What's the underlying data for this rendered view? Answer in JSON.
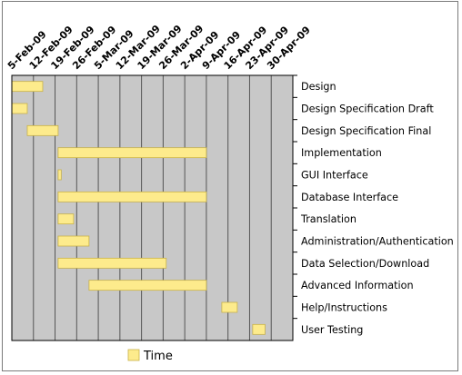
{
  "chart_data": {
    "type": "bar",
    "orientation": "horizontal",
    "subtype": "gantt",
    "title": "",
    "x_tick_labels": [
      "5-Feb-09",
      "12-Feb-09",
      "19-Feb-09",
      "26-Feb-09",
      "5-Mar-09",
      "12-Mar-09",
      "19-Mar-09",
      "26-Mar-09",
      "2-Apr-09",
      "9-Apr-09",
      "16-Apr-09",
      "23-Apr-09",
      "30-Apr-09"
    ],
    "x_range": [
      "2009-02-05",
      "2009-05-07"
    ],
    "y_axis_position": "right",
    "grid": true,
    "legend": {
      "position": "bottom-left",
      "entries": [
        "Time"
      ]
    },
    "colors": {
      "bar": "#fdeb8c",
      "bar_edge": "#c8b24a",
      "plot_bg": "#c8c8c8",
      "grid": "#555555",
      "axis": "#000000"
    },
    "series": [
      {
        "name": "Time",
        "tasks": [
          {
            "task": "Design",
            "start": "2009-02-05",
            "end": "2009-02-15"
          },
          {
            "task": "Design Specification Draft",
            "start": "2009-02-05",
            "end": "2009-02-10"
          },
          {
            "task": "Design Specification Final",
            "start": "2009-02-10",
            "end": "2009-02-20"
          },
          {
            "task": "Implementation",
            "start": "2009-02-20",
            "end": "2009-04-09"
          },
          {
            "task": "GUI Interface",
            "start": "2009-02-20",
            "end": "2009-02-21"
          },
          {
            "task": "Database Interface",
            "start": "2009-02-20",
            "end": "2009-04-09"
          },
          {
            "task": "Translation",
            "start": "2009-02-20",
            "end": "2009-02-25"
          },
          {
            "task": "Administration/Authentication",
            "start": "2009-02-20",
            "end": "2009-03-02"
          },
          {
            "task": "Data Selection/Download",
            "start": "2009-02-20",
            "end": "2009-03-27"
          },
          {
            "task": "Advanced Information",
            "start": "2009-03-02",
            "end": "2009-04-09"
          },
          {
            "task": "Help/Instructions",
            "start": "2009-04-14",
            "end": "2009-04-19"
          },
          {
            "task": "User Testing",
            "start": "2009-04-24",
            "end": "2009-04-28"
          }
        ]
      }
    ]
  }
}
